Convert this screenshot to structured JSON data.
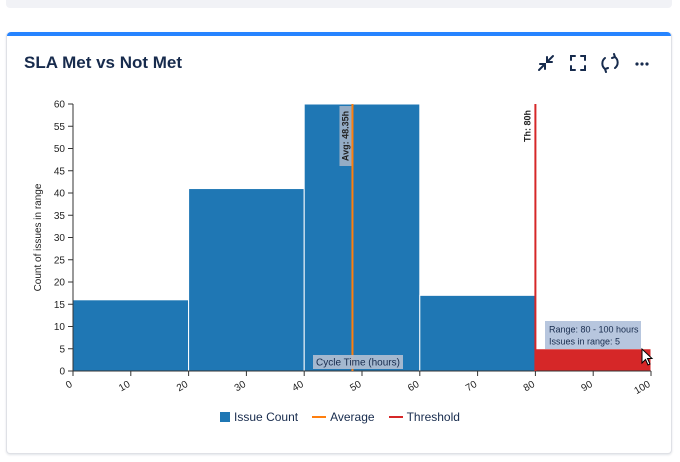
{
  "widget": {
    "title": "SLA Met vs Not Met",
    "toolbar": {
      "collapse_icon": "collapse-arrows-icon",
      "fullscreen_icon": "fullscreen-icon",
      "refresh_icon": "refresh-icon",
      "more_icon": "more-horizontal-icon"
    }
  },
  "colors": {
    "accent": "#2684ff",
    "bar": "#1f77b4",
    "threshold_bar": "#d62728",
    "average_line": "#ff7f0e",
    "threshold_line": "#d62728"
  },
  "chart_data": {
    "type": "bar",
    "xlabel": "Cycle Time (hours)",
    "ylabel": "Count of issues in range",
    "xlim": [
      0,
      100
    ],
    "ylim": [
      0,
      60
    ],
    "x_ticks": [
      0,
      10,
      20,
      30,
      40,
      50,
      60,
      70,
      80,
      90,
      100
    ],
    "y_ticks": [
      0,
      5,
      10,
      15,
      20,
      25,
      30,
      35,
      40,
      45,
      50,
      55,
      60
    ],
    "bins": [
      {
        "from": 0,
        "to": 20,
        "value": 16
      },
      {
        "from": 20,
        "to": 40,
        "value": 41
      },
      {
        "from": 40,
        "to": 60,
        "value": 60
      },
      {
        "from": 60,
        "to": 80,
        "value": 17
      },
      {
        "from": 80,
        "to": 100,
        "value": 5
      }
    ],
    "average": {
      "value": 48.35,
      "label": "Avg: 48.35h"
    },
    "threshold": {
      "value": 80,
      "label": "Th: 80h"
    },
    "tooltip": {
      "line1": "Range: 80 - 100 hours",
      "line2": "Issues in range: 5"
    },
    "legend": [
      "Issue Count",
      "Average",
      "Threshold"
    ]
  }
}
